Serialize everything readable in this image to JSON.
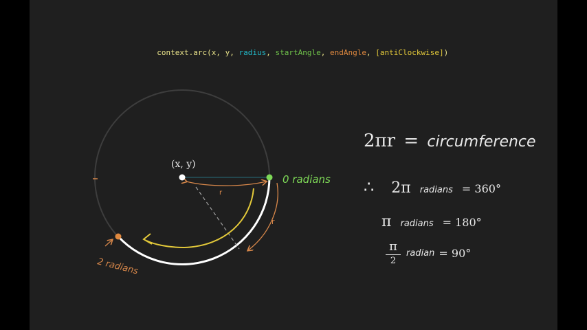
{
  "code": {
    "prefix": "context.arc(x, y, ",
    "radius": "radius",
    "sep1": ", ",
    "start": "startAngle",
    "sep2": ", ",
    "end": "endAngle",
    "sep3": ", ",
    "anti": "[antiClockwise]",
    "suffix": ")"
  },
  "diagram": {
    "center_label": "(x, y)",
    "zero_label": "0 radians",
    "two_label": "2 radians",
    "r_label_top": "r",
    "r_label_side": "r"
  },
  "equations": {
    "eq1_lhs": "2πr",
    "eq1_eq": "=",
    "eq1_rhs": "circumference",
    "therefore": "∴",
    "eq2_lhs": "2π",
    "eq2_mid": "radians",
    "eq2_rhs": "= 360°",
    "eq3_lhs": "π",
    "eq3_mid": "radians",
    "eq3_rhs": "= 180°",
    "eq4_num": "π",
    "eq4_den": "2",
    "eq4_mid": "radian",
    "eq4_rhs": "= 90°"
  },
  "colors": {
    "background": "#1f1f1f",
    "radius_color": "#22b8c8",
    "start_color": "#6fc24a",
    "end_color": "#e0893f",
    "anti_color": "#e3c93a",
    "code_color": "#e9e38a"
  }
}
